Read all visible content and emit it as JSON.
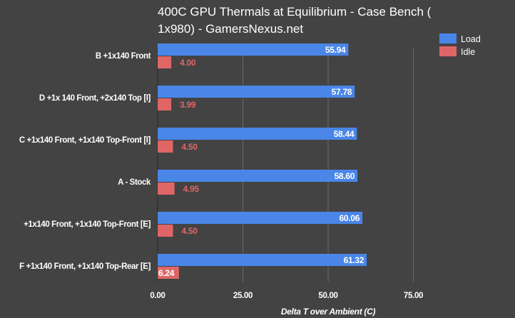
{
  "chart_data": {
    "type": "bar",
    "orientation": "horizontal",
    "title": "400C GPU Thermals at Equilibrium - Case Bench ( 1x980) - GamersNexus.net",
    "title_lines": [
      "400C GPU Thermals at Equilibrium - Case Bench (",
      "1x980) - GamersNexus.net"
    ],
    "xlabel": "Delta T over Ambient (C)",
    "ylabel": "",
    "xlim": [
      0,
      100
    ],
    "xticks": [
      "0.00",
      "25.00",
      "50.00",
      "75.00"
    ],
    "xtick_values": [
      0,
      25,
      50,
      75
    ],
    "grid": true,
    "legend_position": "top-right",
    "categories": [
      "B +1x140 Front",
      "D +1x 140 Front, +2x140 Top [I]",
      "C +1x140 Front, +1x140 Top-Front [I]",
      "A - Stock",
      "+1x140 Front, +1x140 Top-Front [E]",
      "F +1x140 Front, +1x140 Top-Rear [E]"
    ],
    "series": [
      {
        "name": "Load",
        "color": "#4a86e8",
        "values": [
          55.94,
          57.78,
          58.44,
          58.6,
          60.06,
          61.32
        ],
        "labels": [
          "55.94",
          "57.78",
          "58.44",
          "58.60",
          "60.06",
          "61.32"
        ]
      },
      {
        "name": "Idle",
        "color": "#e06666",
        "values": [
          4.0,
          3.99,
          4.5,
          4.95,
          4.5,
          6.24
        ],
        "labels": [
          "4.00",
          "3.99",
          "4.50",
          "4.95",
          "4.50",
          "6.24"
        ]
      }
    ]
  },
  "colors": {
    "background": "#434343",
    "grid": "#6a6a6a",
    "text": "#ffffff"
  }
}
